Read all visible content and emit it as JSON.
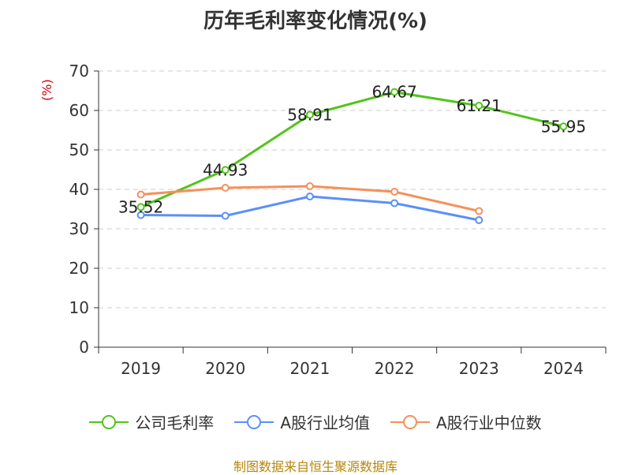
{
  "chart_data": {
    "type": "line",
    "title": "历年毛利率变化情况(%)",
    "ylabel": "(%)",
    "xlabel": "",
    "categories": [
      "2019",
      "2020",
      "2021",
      "2022",
      "2023",
      "2024"
    ],
    "ylim": [
      0,
      70
    ],
    "yticks": [
      0,
      10,
      20,
      30,
      40,
      50,
      60,
      70
    ],
    "grid": true,
    "legend_position": "bottom",
    "series": [
      {
        "name": "公司毛利率",
        "color": "#52c41a",
        "values": [
          35.52,
          44.93,
          58.91,
          64.67,
          61.21,
          55.95
        ],
        "labels": [
          "35.52",
          "44.93",
          "58.91",
          "64.67",
          "61.21",
          "55.95"
        ]
      },
      {
        "name": "A股行业均值",
        "color": "#5b8ff9",
        "values": [
          33.5,
          33.3,
          38.2,
          36.5,
          32.2,
          null
        ]
      },
      {
        "name": "A股行业中位数",
        "color": "#f6905a",
        "values": [
          38.7,
          40.4,
          40.8,
          39.4,
          34.5,
          null
        ]
      }
    ]
  },
  "source": "制图数据来自恒生聚源数据库"
}
